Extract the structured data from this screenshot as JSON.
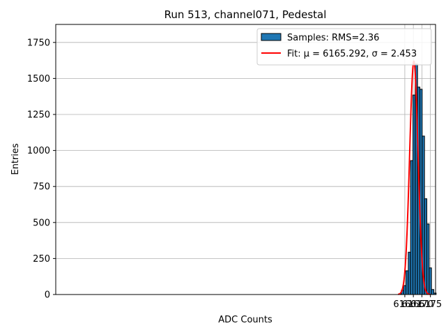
{
  "chart_data": {
    "type": "bar",
    "title": "Run 513, channel071, Pedestal",
    "xlabel": "ADC Counts",
    "ylabel": "Entries",
    "xlim": [
      5955.5,
      6178
    ],
    "ylim": [
      0,
      1875
    ],
    "xticks": [
      6160,
      6165,
      6170,
      6175
    ],
    "yticks": [
      0,
      250,
      500,
      750,
      1000,
      1250,
      1500,
      1750
    ],
    "grid": true,
    "legend_position": "top-right",
    "bin_width": 1.36,
    "histogram": {
      "name": "Samples: RMS=2.36",
      "color": "#1f77b4",
      "bins": [
        {
          "x0": 6156.58,
          "count": 5
        },
        {
          "x0": 6157.94,
          "count": 30
        },
        {
          "x0": 6159.3,
          "count": 62
        },
        {
          "x0": 6160.66,
          "count": 165
        },
        {
          "x0": 6162.02,
          "count": 294
        },
        {
          "x0": 6163.38,
          "count": 930
        },
        {
          "x0": 6164.74,
          "count": 1385
        },
        {
          "x0": 6166.1,
          "count": 1600
        },
        {
          "x0": 6167.46,
          "count": 1440
        },
        {
          "x0": 6168.82,
          "count": 1425
        },
        {
          "x0": 6170.18,
          "count": 1100
        },
        {
          "x0": 6171.54,
          "count": 665
        },
        {
          "x0": 6172.9,
          "count": 490
        },
        {
          "x0": 6174.26,
          "count": 185
        },
        {
          "x0": 6175.62,
          "count": 35
        },
        {
          "x0": 6176.98,
          "count": 10
        }
      ]
    },
    "fit": {
      "name": "Fit: μ = 6165.292, σ = 2.453",
      "color": "#ff0000",
      "mu": 6165.292,
      "sigma": 2.453,
      "peak": 1620,
      "range": [
        6156,
        6175
      ]
    }
  }
}
